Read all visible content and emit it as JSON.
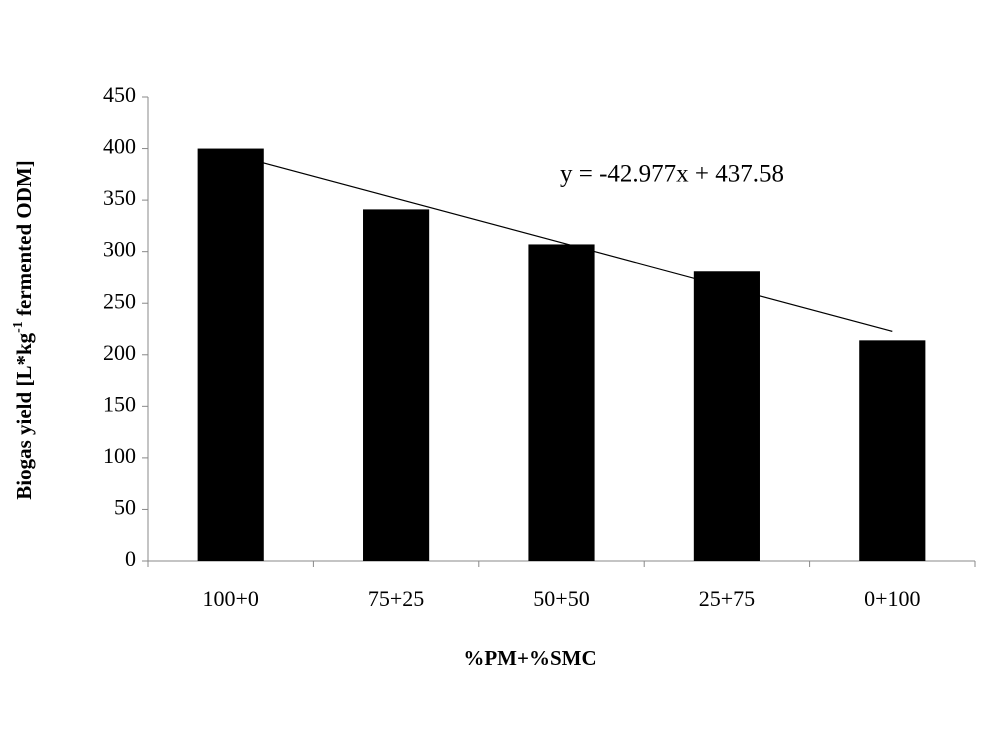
{
  "chart_data": {
    "type": "bar",
    "xlabel": "%PM+%SMC",
    "ylabel": [
      "Biogas yield [L*kg",
      "-1",
      " fermented ODM]"
    ],
    "categories": [
      "100+0",
      "75+25",
      "50+50",
      "25+75",
      "0+100"
    ],
    "values": [
      400,
      341,
      307,
      281,
      214
    ],
    "color": "#000000",
    "ylim": [
      0,
      450
    ],
    "yticks": [
      0,
      50,
      100,
      150,
      200,
      250,
      300,
      350,
      400,
      450
    ],
    "grid": false,
    "trendline": {
      "label": "y = -42.977x + 437.58",
      "slope": -42.977,
      "intercept": 437.58,
      "color": "#000000"
    }
  }
}
